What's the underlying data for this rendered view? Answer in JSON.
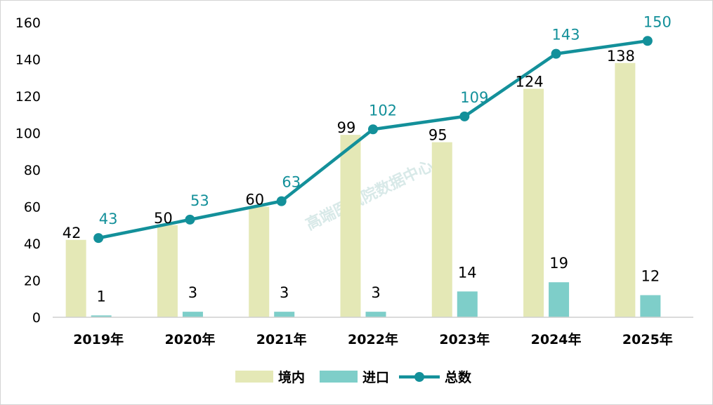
{
  "chart_data": {
    "type": "bar",
    "categories": [
      "2019年",
      "2020年",
      "2021年",
      "2022年",
      "2023年",
      "2024年",
      "2025年"
    ],
    "series": [
      {
        "name": "境内",
        "kind": "bar",
        "color": "#e4e8b6",
        "values": [
          42,
          50,
          60,
          99,
          95,
          124,
          138
        ]
      },
      {
        "name": "进口",
        "kind": "bar",
        "color": "#7ecec9",
        "values": [
          1,
          3,
          3,
          3,
          14,
          19,
          12
        ]
      },
      {
        "name": "总数",
        "kind": "line",
        "color": "#13909a",
        "values": [
          43,
          53,
          63,
          102,
          109,
          143,
          150
        ]
      }
    ],
    "ylim": [
      0,
      160
    ],
    "yticks": [
      0,
      20,
      40,
      60,
      80,
      100,
      120,
      140,
      160
    ],
    "legend": "bottom",
    "title": "",
    "xlabel": "",
    "ylabel": ""
  },
  "watermark": "高端医械院数据中心"
}
